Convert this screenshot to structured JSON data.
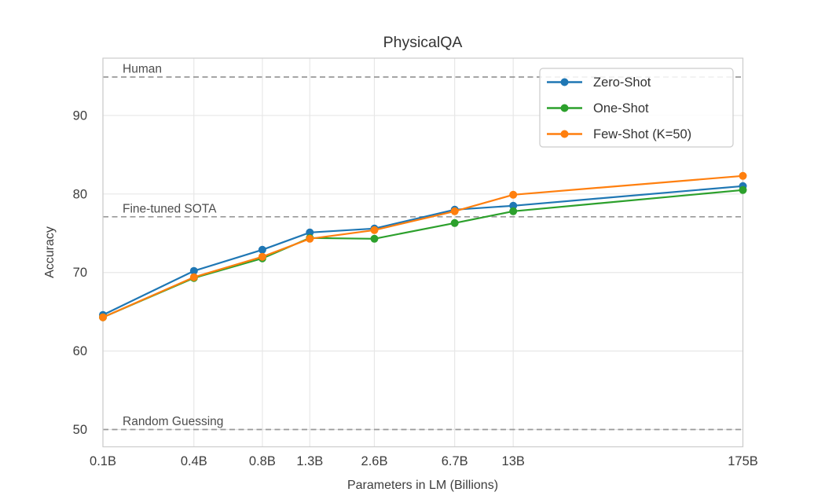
{
  "figure": {
    "background": "#ffffff"
  },
  "chart_data": {
    "type": "line",
    "title": "PhysicalQA",
    "xlabel": "Parameters in LM (Billions)",
    "ylabel": "Accuracy",
    "xscale": "log",
    "xlim": [
      0.125,
      175
    ],
    "ylim": [
      47.8,
      97.3
    ],
    "x": [
      0.125,
      0.35,
      0.76,
      1.3,
      2.7,
      6.7,
      13,
      175
    ],
    "x_tick_labels": [
      "0.1B",
      "0.4B",
      "0.8B",
      "1.3B",
      "2.6B",
      "6.7B",
      "13B",
      "175B"
    ],
    "y_ticks": [
      50,
      60,
      70,
      80,
      90
    ],
    "grid": true,
    "legend_position": "upper right",
    "series": [
      {
        "name": "Zero-Shot",
        "color": "#1f77b4",
        "values": [
          64.6,
          70.2,
          72.9,
          75.1,
          75.6,
          78.0,
          78.5,
          81.0
        ]
      },
      {
        "name": "One-Shot",
        "color": "#2ca02c",
        "values": [
          64.3,
          69.3,
          71.8,
          74.4,
          74.3,
          76.3,
          77.8,
          80.5
        ]
      },
      {
        "name": "Few-Shot (K=50)",
        "color": "#ff7f0e",
        "values": [
          64.3,
          69.4,
          72.0,
          74.3,
          75.4,
          77.8,
          79.9,
          82.3
        ]
      }
    ],
    "reference_lines": [
      {
        "label": "Human",
        "value": 94.9
      },
      {
        "label": "Fine-tuned SOTA",
        "value": 77.1
      },
      {
        "label": "Random Guessing",
        "value": 50.0
      }
    ]
  },
  "style_colors": {
    "grid": "#e7e7e7",
    "spine": "#cccccc",
    "reference_line": "#999999",
    "tick_text": "#3d3d3d",
    "annotation_text": "#4d4d4d",
    "legend_border": "#cccccc",
    "legend_text": "#333333"
  }
}
